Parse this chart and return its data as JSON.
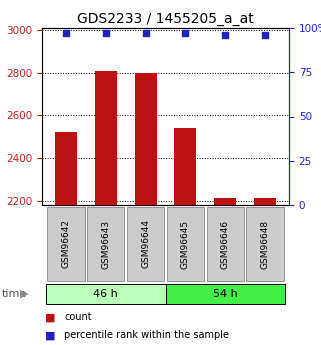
{
  "title": "GDS2233 / 1455205_a_at",
  "samples": [
    "GSM96642",
    "GSM96643",
    "GSM96644",
    "GSM96645",
    "GSM96646",
    "GSM96648"
  ],
  "counts": [
    2520,
    2810,
    2800,
    2540,
    2215,
    2215
  ],
  "percentile_ranks": [
    97,
    97,
    97,
    97,
    96,
    96
  ],
  "ylim_left": [
    2180,
    3010
  ],
  "ylim_right": [
    0,
    100
  ],
  "yticks_left": [
    2200,
    2400,
    2600,
    2800,
    3000
  ],
  "yticks_right": [
    0,
    25,
    50,
    75,
    100
  ],
  "bar_color": "#bb1111",
  "dot_color": "#2222bb",
  "group1_label": "46 h",
  "group2_label": "54 h",
  "group1_indices": [
    0,
    1,
    2
  ],
  "group2_indices": [
    3,
    4,
    5
  ],
  "group1_color": "#bbffbb",
  "group2_color": "#44ee44",
  "legend_count_label": "count",
  "legend_pct_label": "percentile rank within the sample",
  "left_tick_color": "#cc2222",
  "right_tick_color": "#2222cc",
  "sample_box_color": "#cccccc",
  "bar_bottom": 2180,
  "bar_width": 0.55
}
